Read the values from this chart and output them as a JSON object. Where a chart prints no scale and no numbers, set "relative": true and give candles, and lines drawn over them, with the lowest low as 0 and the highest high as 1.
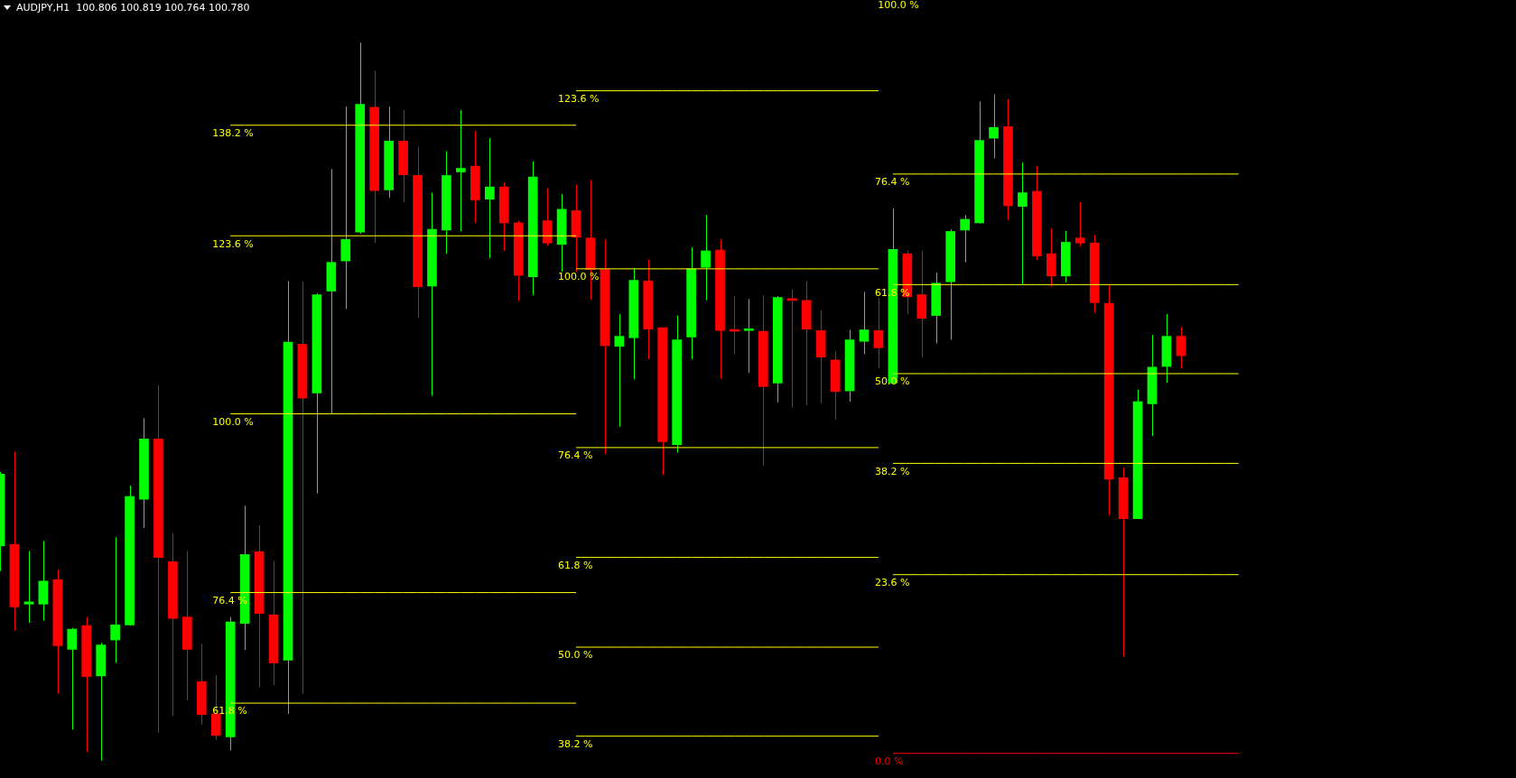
{
  "chart_data": {
    "type": "candlestick",
    "title": "AUDJPY,H1  100.806 100.819 100.764 100.780",
    "relative": true,
    "legend": false,
    "annotations": [
      "100.0 %"
    ],
    "categories": [
      null,
      null,
      null,
      null,
      null,
      null,
      null,
      null,
      null,
      null,
      null,
      null,
      null,
      null,
      null,
      null,
      null,
      null,
      null,
      null,
      null,
      null,
      null,
      null,
      null,
      null,
      null,
      null,
      null,
      null,
      null,
      null,
      null,
      null,
      null,
      null,
      null,
      null,
      null,
      null,
      null,
      null,
      null,
      null,
      null,
      null,
      null,
      null,
      null,
      null,
      null,
      null,
      null,
      null,
      null,
      null,
      null,
      null,
      null,
      null,
      null,
      null,
      null,
      null,
      null,
      null,
      null,
      null,
      null,
      null,
      null,
      null,
      null,
      null,
      null,
      null,
      null,
      null,
      null,
      null,
      null,
      null,
      null,
      null,
      null,
      null,
      null
    ],
    "ohlc": [
      [
        0.299,
        0.402,
        0.264,
        0.399
      ],
      [
        0.301,
        0.43,
        0.181,
        0.214
      ],
      [
        0.218,
        0.292,
        0.192,
        0.221
      ],
      [
        0.218,
        0.306,
        0.195,
        0.25
      ],
      [
        0.252,
        0.266,
        0.093,
        0.16
      ],
      [
        0.155,
        0.185,
        0.043,
        0.183
      ],
      [
        0.188,
        0.2,
        0.012,
        0.117
      ],
      [
        0.118,
        0.164,
        0,
        0.161
      ],
      [
        0.168,
        0.311,
        0.136,
        0.189
      ],
      [
        0.189,
        0.383,
        0.188,
        0.368
      ],
      [
        0.364,
        0.477,
        0.324,
        0.448
      ],
      [
        0.448,
        0.523,
        0.039,
        0.283
      ],
      [
        0.277,
        0.317,
        0.062,
        0.198
      ],
      [
        0.2,
        0.292,
        0.084,
        0.155
      ],
      [
        0.11,
        0.163,
        0.05,
        0.064
      ],
      [
        0.065,
        0.119,
        0.029,
        0.035
      ],
      [
        0.033,
        0.2,
        0.014,
        0.193
      ],
      [
        0.191,
        0.355,
        0.154,
        0.287
      ],
      [
        0.291,
        0.328,
        0.102,
        0.205
      ],
      [
        0.203,
        0.278,
        0.105,
        0.136
      ],
      [
        0.14,
        0.668,
        0.065,
        0.583
      ],
      [
        0.58,
        0.667,
        0.093,
        0.505
      ],
      [
        0.512,
        0.651,
        0.372,
        0.649
      ],
      [
        0.654,
        0.824,
        0.483,
        0.694
      ],
      [
        0.696,
        0.911,
        0.629,
        0.726
      ],
      [
        0.736,
        1,
        0.734,
        0.914
      ],
      [
        0.91,
        0.961,
        0.721,
        0.794
      ],
      [
        0.795,
        0.911,
        0.784,
        0.863
      ],
      [
        0.863,
        0.906,
        0.778,
        0.816
      ],
      [
        0.815,
        0.855,
        0.617,
        0.66
      ],
      [
        0.661,
        0.791,
        0.508,
        0.74
      ],
      [
        0.739,
        0.849,
        0.706,
        0.815
      ],
      [
        0.82,
        0.906,
        0.737,
        0.825
      ],
      [
        0.828,
        0.877,
        0.749,
        0.781
      ],
      [
        0.782,
        0.867,
        0.7,
        0.799
      ],
      [
        0.799,
        0.805,
        0.71,
        0.749
      ],
      [
        0.749,
        0.752,
        0.64,
        0.676
      ],
      [
        0.674,
        0.835,
        0.648,
        0.813
      ],
      [
        0.752,
        0.797,
        0.717,
        0.721
      ],
      [
        0.719,
        0.789,
        0.681,
        0.768
      ],
      [
        0.766,
        0.802,
        0.681,
        0.729
      ],
      [
        0.728,
        0.809,
        0.642,
        0.684
      ],
      [
        0.684,
        0.726,
        0.427,
        0.578
      ],
      [
        0.577,
        0.622,
        0.465,
        0.591
      ],
      [
        0.589,
        0.686,
        0.531,
        0.669
      ],
      [
        0.668,
        0.698,
        0.559,
        0.601
      ],
      [
        0.603,
        0.603,
        0.398,
        0.444
      ],
      [
        0.44,
        0.62,
        0.429,
        0.586
      ],
      [
        0.59,
        0.715,
        0.559,
        0.685
      ],
      [
        0.687,
        0.76,
        0.641,
        0.71
      ],
      [
        0.711,
        0.726,
        0.532,
        0.599
      ],
      [
        0.6,
        0.647,
        0.566,
        0.598
      ],
      [
        0.599,
        0.643,
        0.54,
        0.6
      ],
      [
        0.598,
        0.648,
        0.411,
        0.521
      ],
      [
        0.526,
        0.647,
        0.499,
        0.645
      ],
      [
        0.642,
        0.656,
        0.492,
        0.641
      ],
      [
        0.641,
        0.668,
        0.495,
        0.601
      ],
      [
        0.599,
        0.627,
        0.498,
        0.562
      ],
      [
        0.558,
        0.57,
        0.475,
        0.514
      ],
      [
        0.515,
        0.6,
        0.5,
        0.586
      ],
      [
        0.584,
        0.653,
        0.566,
        0.6
      ],
      [
        0.599,
        0.645,
        0.546,
        0.575
      ],
      [
        0.526,
        0.769,
        0.526,
        0.712
      ],
      [
        0.706,
        0.71,
        0.622,
        0.646
      ],
      [
        0.649,
        0.71,
        0.562,
        0.616
      ],
      [
        0.62,
        0.68,
        0.581,
        0.665
      ],
      [
        0.667,
        0.74,
        0.586,
        0.737
      ],
      [
        0.739,
        0.76,
        0.694,
        0.754
      ],
      [
        0.749,
        0.918,
        0.748,
        0.864
      ],
      [
        0.867,
        0.928,
        0.839,
        0.882
      ],
      [
        0.883,
        0.921,
        0.753,
        0.773
      ],
      [
        0.772,
        0.833,
        0.663,
        0.791
      ],
      [
        0.793,
        0.828,
        0.697,
        0.703
      ],
      [
        0.706,
        0.741,
        0.66,
        0.675
      ],
      [
        0.675,
        0.738,
        0.666,
        0.722
      ],
      [
        0.728,
        0.778,
        0.716,
        0.721
      ],
      [
        0.721,
        0.732,
        0.624,
        0.638
      ],
      [
        0.637,
        0.663,
        0.342,
        0.392
      ],
      [
        0.394,
        0.408,
        0.145,
        0.337
      ],
      [
        0.337,
        0.517,
        0.337,
        0.5
      ],
      [
        0.497,
        0.593,
        0.452,
        0.548
      ],
      [
        0.549,
        0.622,
        0.526,
        0.591
      ],
      [
        0.591,
        0.604,
        0.546,
        0.564
      ],
      null,
      null,
      null,
      null
    ],
    "colors": [
      "#00ff00",
      "#ff0000",
      "#00ff00",
      "#00ff00",
      "#ff0000",
      "#00ff00",
      "#ff0000",
      "#00ff00",
      "#00ff00",
      "#00ff00",
      "#00ff00",
      "#ff0000",
      "#ff0000",
      "#ff0000",
      "#ff0000",
      "#ff0000",
      "#00ff00",
      "#00ff00",
      "#ff0000",
      "#ff0000",
      "#00ff00",
      "#ff0000",
      "#00ff00",
      "#00ff00",
      "#00ff00",
      "#00ff00",
      "#ff0000",
      "#00ff00",
      "#ff0000",
      "#ff0000",
      "#00ff00",
      "#00ff00",
      "#00ff00",
      "#ff0000",
      "#00ff00",
      "#ff0000",
      "#ff0000",
      "#00ff00",
      "#ff0000",
      "#00ff00",
      "#ff0000",
      "#ff0000",
      "#ff0000",
      "#00ff00",
      "#00ff00",
      "#ff0000",
      "#ff0000",
      "#00ff00",
      "#00ff00",
      "#00ff00",
      "#ff0000",
      "#ff0000",
      "#00ff00",
      "#ff0000",
      "#00ff00",
      "#ff0000",
      "#ff0000",
      "#ff0000",
      "#ff0000",
      "#00ff00",
      "#00ff00",
      "#ff0000",
      "#00ff00",
      "#ff0000",
      "#ff0000",
      "#00ff00",
      "#00ff00",
      "#00ff00",
      "#00ff00",
      "#00ff00",
      "#ff0000",
      "#00ff00",
      "#ff0000",
      "#ff0000",
      "#00ff00",
      "#ff0000",
      "#ff0000",
      "#ff0000",
      "#ff0000",
      "#00ff00",
      "#00ff00",
      "#00ff00",
      "#ff0000",
      null,
      null,
      null,
      null
    ],
    "series": [
      {
        "type": "line",
        "name": "138.2 %",
        "color": "#ffff00",
        "values": [
          null,
          null,
          null,
          null,
          null,
          null,
          null,
          null,
          null,
          null,
          null,
          null,
          null,
          null,
          null,
          null,
          0.885,
          0.885,
          0.885,
          0.885,
          0.885,
          0.885,
          0.885,
          0.885,
          0.885,
          0.885,
          0.885,
          0.885,
          0.885,
          0.885,
          0.885,
          0.885,
          0.885,
          0.885,
          0.885,
          0.885,
          0.885,
          0.885,
          0.885,
          0.885,
          0.885,
          null,
          null,
          null,
          null,
          null,
          null,
          null,
          null,
          null,
          null,
          null,
          null,
          null,
          null,
          null,
          null,
          null,
          null,
          null,
          null,
          null,
          null,
          null,
          null,
          null,
          null,
          null,
          null,
          null,
          null,
          null,
          null,
          null,
          null,
          null,
          null,
          null,
          null,
          null,
          null,
          null,
          null,
          null,
          null,
          null,
          null
        ]
      },
      {
        "type": "line",
        "name": "123.6 %",
        "color": "#ffff00",
        "values": [
          null,
          null,
          null,
          null,
          null,
          null,
          null,
          null,
          null,
          null,
          null,
          null,
          null,
          null,
          null,
          null,
          0.731,
          0.731,
          0.731,
          0.731,
          0.731,
          0.731,
          0.731,
          0.731,
          0.731,
          0.731,
          0.731,
          0.731,
          0.731,
          0.731,
          0.731,
          0.731,
          0.731,
          0.731,
          0.731,
          0.731,
          0.731,
          0.731,
          0.731,
          0.731,
          0.731,
          null,
          null,
          null,
          null,
          null,
          null,
          null,
          null,
          null,
          null,
          null,
          null,
          null,
          null,
          null,
          null,
          null,
          null,
          null,
          null,
          null,
          null,
          null,
          null,
          null,
          null,
          null,
          null,
          null,
          null,
          null,
          null,
          null,
          null,
          null,
          null,
          null,
          null,
          null,
          null,
          null,
          null,
          null,
          null,
          null,
          null
        ]
      },
      {
        "type": "line",
        "name": "100.0 %",
        "color": "#ffff00",
        "values": [
          null,
          null,
          null,
          null,
          null,
          null,
          null,
          null,
          null,
          null,
          null,
          null,
          null,
          null,
          null,
          null,
          0.483,
          0.483,
          0.483,
          0.483,
          0.483,
          0.483,
          0.483,
          0.483,
          0.483,
          0.483,
          0.483,
          0.483,
          0.483,
          0.483,
          0.483,
          0.483,
          0.483,
          0.483,
          0.483,
          0.483,
          0.483,
          0.483,
          0.483,
          0.483,
          0.483,
          null,
          null,
          null,
          null,
          null,
          null,
          null,
          null,
          null,
          null,
          null,
          null,
          null,
          null,
          null,
          null,
          null,
          null,
          null,
          null,
          null,
          null,
          null,
          null,
          null,
          null,
          null,
          null,
          null,
          null,
          null,
          null,
          null,
          null,
          null,
          null,
          null,
          null,
          null,
          null,
          null,
          null,
          null,
          null,
          null,
          null
        ]
      },
      {
        "type": "line",
        "name": "76.4 %",
        "color": "#ffff00",
        "values": [
          null,
          null,
          null,
          null,
          null,
          null,
          null,
          null,
          null,
          null,
          null,
          null,
          null,
          null,
          null,
          null,
          0.234,
          0.234,
          0.234,
          0.234,
          0.234,
          0.234,
          0.234,
          0.234,
          0.234,
          0.234,
          0.234,
          0.234,
          0.234,
          0.234,
          0.234,
          0.234,
          0.234,
          0.234,
          0.234,
          0.234,
          0.234,
          0.234,
          0.234,
          0.234,
          0.234,
          null,
          null,
          null,
          null,
          null,
          null,
          null,
          null,
          null,
          null,
          null,
          null,
          null,
          null,
          null,
          null,
          null,
          null,
          null,
          null,
          null,
          null,
          null,
          null,
          null,
          null,
          null,
          null,
          null,
          null,
          null,
          null,
          null,
          null,
          null,
          null,
          null,
          null,
          null,
          null,
          null,
          null,
          null,
          null,
          null,
          null
        ]
      },
      {
        "type": "line",
        "name": "61.8 %",
        "color": "#ffff00",
        "values": [
          null,
          null,
          null,
          null,
          null,
          null,
          null,
          null,
          null,
          null,
          null,
          null,
          null,
          null,
          null,
          null,
          0.08,
          0.08,
          0.08,
          0.08,
          0.08,
          0.08,
          0.08,
          0.08,
          0.08,
          0.08,
          0.08,
          0.08,
          0.08,
          0.08,
          0.08,
          0.08,
          0.08,
          0.08,
          0.08,
          0.08,
          0.08,
          0.08,
          0.08,
          0.08,
          0.08,
          null,
          null,
          null,
          null,
          null,
          null,
          null,
          null,
          null,
          null,
          null,
          null,
          null,
          null,
          null,
          null,
          null,
          null,
          null,
          null,
          null,
          null,
          null,
          null,
          null,
          null,
          null,
          null,
          null,
          null,
          null,
          null,
          null,
          null,
          null,
          null,
          null,
          null,
          null,
          null,
          null,
          null,
          null,
          null,
          null,
          null
        ]
      },
      {
        "type": "line",
        "name": "123.6 %",
        "color": "#ffff00",
        "values": [
          null,
          null,
          null,
          null,
          null,
          null,
          null,
          null,
          null,
          null,
          null,
          null,
          null,
          null,
          null,
          null,
          null,
          null,
          null,
          null,
          null,
          null,
          null,
          null,
          null,
          null,
          null,
          null,
          null,
          null,
          null,
          null,
          null,
          null,
          null,
          null,
          null,
          null,
          null,
          null,
          0.933,
          0.933,
          0.933,
          0.933,
          0.933,
          0.933,
          0.933,
          0.933,
          0.933,
          0.933,
          0.933,
          0.933,
          0.933,
          0.933,
          0.933,
          0.933,
          0.933,
          0.933,
          0.933,
          0.933,
          0.933,
          0.933,
          null,
          null,
          null,
          null,
          null,
          null,
          null,
          null,
          null,
          null,
          null,
          null,
          null,
          null,
          null,
          null,
          null,
          null,
          null,
          null,
          null,
          null,
          null,
          null,
          null
        ]
      },
      {
        "type": "line",
        "name": "100.0 %",
        "color": "#ffff00",
        "values": [
          null,
          null,
          null,
          null,
          null,
          null,
          null,
          null,
          null,
          null,
          null,
          null,
          null,
          null,
          null,
          null,
          null,
          null,
          null,
          null,
          null,
          null,
          null,
          null,
          null,
          null,
          null,
          null,
          null,
          null,
          null,
          null,
          null,
          null,
          null,
          null,
          null,
          null,
          null,
          null,
          0.685,
          0.685,
          0.685,
          0.685,
          0.685,
          0.685,
          0.685,
          0.685,
          0.685,
          0.685,
          0.685,
          0.685,
          0.685,
          0.685,
          0.685,
          0.685,
          0.685,
          0.685,
          0.685,
          0.685,
          0.685,
          0.685,
          null,
          null,
          null,
          null,
          null,
          null,
          null,
          null,
          null,
          null,
          null,
          null,
          null,
          null,
          null,
          null,
          null,
          null,
          null,
          null,
          null,
          null,
          null,
          null,
          null
        ]
      },
      {
        "type": "line",
        "name": "76.4 %",
        "color": "#ffff00",
        "values": [
          null,
          null,
          null,
          null,
          null,
          null,
          null,
          null,
          null,
          null,
          null,
          null,
          null,
          null,
          null,
          null,
          null,
          null,
          null,
          null,
          null,
          null,
          null,
          null,
          null,
          null,
          null,
          null,
          null,
          null,
          null,
          null,
          null,
          null,
          null,
          null,
          null,
          null,
          null,
          null,
          0.436,
          0.436,
          0.436,
          0.436,
          0.436,
          0.436,
          0.436,
          0.436,
          0.436,
          0.436,
          0.436,
          0.436,
          0.436,
          0.436,
          0.436,
          0.436,
          0.436,
          0.436,
          0.436,
          0.436,
          0.436,
          0.436,
          null,
          null,
          null,
          null,
          null,
          null,
          null,
          null,
          null,
          null,
          null,
          null,
          null,
          null,
          null,
          null,
          null,
          null,
          null,
          null,
          null,
          null,
          null,
          null,
          null
        ]
      },
      {
        "type": "line",
        "name": "61.8 %",
        "color": "#ffff00",
        "values": [
          null,
          null,
          null,
          null,
          null,
          null,
          null,
          null,
          null,
          null,
          null,
          null,
          null,
          null,
          null,
          null,
          null,
          null,
          null,
          null,
          null,
          null,
          null,
          null,
          null,
          null,
          null,
          null,
          null,
          null,
          null,
          null,
          null,
          null,
          null,
          null,
          null,
          null,
          null,
          null,
          0.283,
          0.283,
          0.283,
          0.283,
          0.283,
          0.283,
          0.283,
          0.283,
          0.283,
          0.283,
          0.283,
          0.283,
          0.283,
          0.283,
          0.283,
          0.283,
          0.283,
          0.283,
          0.283,
          0.283,
          0.283,
          0.283,
          null,
          null,
          null,
          null,
          null,
          null,
          null,
          null,
          null,
          null,
          null,
          null,
          null,
          null,
          null,
          null,
          null,
          null,
          null,
          null,
          null,
          null,
          null,
          null,
          null
        ]
      },
      {
        "type": "line",
        "name": "50.0 %",
        "color": "#ffff00",
        "values": [
          null,
          null,
          null,
          null,
          null,
          null,
          null,
          null,
          null,
          null,
          null,
          null,
          null,
          null,
          null,
          null,
          null,
          null,
          null,
          null,
          null,
          null,
          null,
          null,
          null,
          null,
          null,
          null,
          null,
          null,
          null,
          null,
          null,
          null,
          null,
          null,
          null,
          null,
          null,
          null,
          0.158,
          0.158,
          0.158,
          0.158,
          0.158,
          0.158,
          0.158,
          0.158,
          0.158,
          0.158,
          0.158,
          0.158,
          0.158,
          0.158,
          0.158,
          0.158,
          0.158,
          0.158,
          0.158,
          0.158,
          0.158,
          0.158,
          null,
          null,
          null,
          null,
          null,
          null,
          null,
          null,
          null,
          null,
          null,
          null,
          null,
          null,
          null,
          null,
          null,
          null,
          null,
          null,
          null,
          null,
          null,
          null,
          null
        ]
      },
      {
        "type": "line",
        "name": "38.2 %",
        "color": "#ffff00",
        "values": [
          null,
          null,
          null,
          null,
          null,
          null,
          null,
          null,
          null,
          null,
          null,
          null,
          null,
          null,
          null,
          null,
          null,
          null,
          null,
          null,
          null,
          null,
          null,
          null,
          null,
          null,
          null,
          null,
          null,
          null,
          null,
          null,
          null,
          null,
          null,
          null,
          null,
          null,
          null,
          null,
          0.034,
          0.034,
          0.034,
          0.034,
          0.034,
          0.034,
          0.034,
          0.034,
          0.034,
          0.034,
          0.034,
          0.034,
          0.034,
          0.034,
          0.034,
          0.034,
          0.034,
          0.034,
          0.034,
          0.034,
          0.034,
          0.034,
          null,
          null,
          null,
          null,
          null,
          null,
          null,
          null,
          null,
          null,
          null,
          null,
          null,
          null,
          null,
          null,
          null,
          null,
          null,
          null,
          null,
          null,
          null,
          null,
          null
        ]
      },
      {
        "type": "line",
        "name": "76.4 %",
        "color": "#ffff00",
        "values": [
          null,
          null,
          null,
          null,
          null,
          null,
          null,
          null,
          null,
          null,
          null,
          null,
          null,
          null,
          null,
          null,
          null,
          null,
          null,
          null,
          null,
          null,
          null,
          null,
          null,
          null,
          null,
          null,
          null,
          null,
          null,
          null,
          null,
          null,
          null,
          null,
          null,
          null,
          null,
          null,
          null,
          null,
          null,
          null,
          null,
          null,
          null,
          null,
          null,
          null,
          null,
          null,
          null,
          null,
          null,
          null,
          null,
          null,
          null,
          null,
          null,
          null,
          0.817,
          0.817,
          0.817,
          0.817,
          0.817,
          0.817,
          0.817,
          0.817,
          0.817,
          0.817,
          0.817,
          0.817,
          0.817,
          0.817,
          0.817,
          0.817,
          0.817,
          0.817,
          0.817,
          0.817,
          0.817,
          0.817,
          0.817,
          0.817,
          0.817
        ]
      },
      {
        "type": "line",
        "name": "61.8 %",
        "color": "#ffff00",
        "values": [
          null,
          null,
          null,
          null,
          null,
          null,
          null,
          null,
          null,
          null,
          null,
          null,
          null,
          null,
          null,
          null,
          null,
          null,
          null,
          null,
          null,
          null,
          null,
          null,
          null,
          null,
          null,
          null,
          null,
          null,
          null,
          null,
          null,
          null,
          null,
          null,
          null,
          null,
          null,
          null,
          null,
          null,
          null,
          null,
          null,
          null,
          null,
          null,
          null,
          null,
          null,
          null,
          null,
          null,
          null,
          null,
          null,
          null,
          null,
          null,
          null,
          null,
          0.663,
          0.663,
          0.663,
          0.663,
          0.663,
          0.663,
          0.663,
          0.663,
          0.663,
          0.663,
          0.663,
          0.663,
          0.663,
          0.663,
          0.663,
          0.663,
          0.663,
          0.663,
          0.663,
          0.663,
          0.663,
          0.663,
          0.663,
          0.663,
          0.663
        ]
      },
      {
        "type": "line",
        "name": "50.0 %",
        "color": "#ffff00",
        "values": [
          null,
          null,
          null,
          null,
          null,
          null,
          null,
          null,
          null,
          null,
          null,
          null,
          null,
          null,
          null,
          null,
          null,
          null,
          null,
          null,
          null,
          null,
          null,
          null,
          null,
          null,
          null,
          null,
          null,
          null,
          null,
          null,
          null,
          null,
          null,
          null,
          null,
          null,
          null,
          null,
          null,
          null,
          null,
          null,
          null,
          null,
          null,
          null,
          null,
          null,
          null,
          null,
          null,
          null,
          null,
          null,
          null,
          null,
          null,
          null,
          null,
          null,
          0.539,
          0.539,
          0.539,
          0.539,
          0.539,
          0.539,
          0.539,
          0.539,
          0.539,
          0.539,
          0.539,
          0.539,
          0.539,
          0.539,
          0.539,
          0.539,
          0.539,
          0.539,
          0.539,
          0.539,
          0.539,
          0.539,
          0.539,
          0.539,
          0.539
        ]
      },
      {
        "type": "line",
        "name": "38.2 %",
        "color": "#ffff00",
        "values": [
          null,
          null,
          null,
          null,
          null,
          null,
          null,
          null,
          null,
          null,
          null,
          null,
          null,
          null,
          null,
          null,
          null,
          null,
          null,
          null,
          null,
          null,
          null,
          null,
          null,
          null,
          null,
          null,
          null,
          null,
          null,
          null,
          null,
          null,
          null,
          null,
          null,
          null,
          null,
          null,
          null,
          null,
          null,
          null,
          null,
          null,
          null,
          null,
          null,
          null,
          null,
          null,
          null,
          null,
          null,
          null,
          null,
          null,
          null,
          null,
          null,
          null,
          0.414,
          0.414,
          0.414,
          0.414,
          0.414,
          0.414,
          0.414,
          0.414,
          0.414,
          0.414,
          0.414,
          0.414,
          0.414,
          0.414,
          0.414,
          0.414,
          0.414,
          0.414,
          0.414,
          0.414,
          0.414,
          0.414,
          0.414,
          0.414,
          0.414
        ]
      },
      {
        "type": "line",
        "name": "23.6 %",
        "color": "#ffff00",
        "values": [
          null,
          null,
          null,
          null,
          null,
          null,
          null,
          null,
          null,
          null,
          null,
          null,
          null,
          null,
          null,
          null,
          null,
          null,
          null,
          null,
          null,
          null,
          null,
          null,
          null,
          null,
          null,
          null,
          null,
          null,
          null,
          null,
          null,
          null,
          null,
          null,
          null,
          null,
          null,
          null,
          null,
          null,
          null,
          null,
          null,
          null,
          null,
          null,
          null,
          null,
          null,
          null,
          null,
          null,
          null,
          null,
          null,
          null,
          null,
          null,
          null,
          null,
          0.259,
          0.259,
          0.259,
          0.259,
          0.259,
          0.259,
          0.259,
          0.259,
          0.259,
          0.259,
          0.259,
          0.259,
          0.259,
          0.259,
          0.259,
          0.259,
          0.259,
          0.259,
          0.259,
          0.259,
          0.259,
          0.259,
          0.259,
          0.259,
          0.259
        ]
      },
      {
        "type": "line",
        "name": "0.0 %",
        "color": "#ff0000",
        "values": [
          null,
          null,
          null,
          null,
          null,
          null,
          null,
          null,
          null,
          null,
          null,
          null,
          null,
          null,
          null,
          null,
          null,
          null,
          null,
          null,
          null,
          null,
          null,
          null,
          null,
          null,
          null,
          null,
          null,
          null,
          null,
          null,
          null,
          null,
          null,
          null,
          null,
          null,
          null,
          null,
          null,
          null,
          null,
          null,
          null,
          null,
          null,
          null,
          null,
          null,
          null,
          null,
          null,
          null,
          null,
          null,
          null,
          null,
          null,
          null,
          null,
          null,
          0.01,
          0.01,
          0.01,
          0.01,
          0.01,
          0.01,
          0.01,
          0.01,
          0.01,
          0.01,
          0.01,
          0.01,
          0.01,
          0.01,
          0.01,
          0.01,
          0.01,
          0.01,
          0.01,
          0.01,
          0.01,
          0.01,
          0.01,
          0.01,
          0.01
        ]
      }
    ]
  }
}
